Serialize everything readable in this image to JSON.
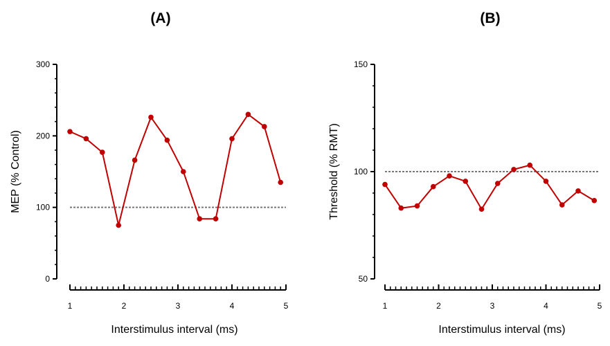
{
  "chart_data": [
    {
      "type": "line",
      "panel_label": "(A)",
      "xlabel": "Interstimulus interval (ms)",
      "ylabel": "MEP (% Control)",
      "xlim": [
        1,
        5
      ],
      "ylim": [
        0,
        300
      ],
      "xticks": [
        "1",
        "2",
        "3",
        "4",
        "5"
      ],
      "yticks": [
        "0",
        "100",
        "200",
        "300"
      ],
      "reference_line": 100,
      "series": [
        {
          "name": "MEP",
          "color": "#c00000",
          "x": [
            1.0,
            1.3,
            1.6,
            1.9,
            2.2,
            2.5,
            2.8,
            3.1,
            3.4,
            3.7,
            4.0,
            4.3,
            4.6,
            4.9
          ],
          "y": [
            206,
            196,
            177,
            75,
            166,
            226,
            194,
            150,
            84,
            84,
            196,
            230,
            213,
            135
          ]
        }
      ]
    },
    {
      "type": "line",
      "panel_label": "(B)",
      "xlabel": "Interstimulus interval (ms)",
      "ylabel": "Threshold (% RMT)",
      "xlim": [
        1,
        5
      ],
      "ylim": [
        50,
        150
      ],
      "xticks": [
        "1",
        "2",
        "3",
        "4",
        "5"
      ],
      "yticks": [
        "50",
        "100",
        "150"
      ],
      "reference_line": 100,
      "series": [
        {
          "name": "Threshold",
          "color": "#c00000",
          "x": [
            1.0,
            1.3,
            1.6,
            1.9,
            2.2,
            2.5,
            2.8,
            3.1,
            3.4,
            3.7,
            4.0,
            4.3,
            4.6,
            4.9
          ],
          "y": [
            94,
            83,
            84,
            93,
            98,
            95.5,
            82.5,
            94.5,
            101,
            103,
            95.5,
            84.5,
            91,
            86.5
          ]
        }
      ]
    }
  ]
}
